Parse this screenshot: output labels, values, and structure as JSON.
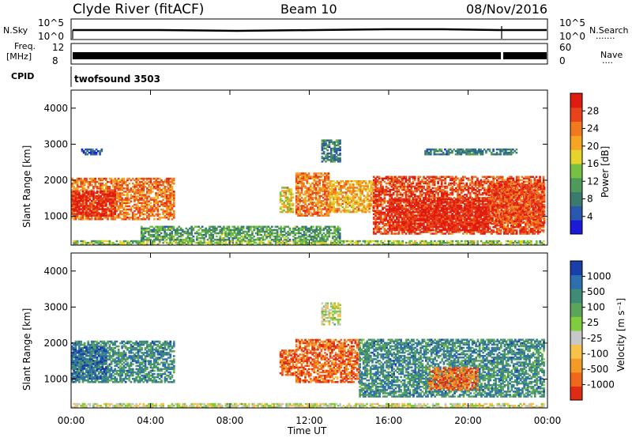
{
  "header": {
    "title": "Clyde River (fitACF)",
    "beam": "Beam 10",
    "date": "08/Nov/2016"
  },
  "top_panels": {
    "nsky_label": "N.Sky",
    "nsky_ticks": [
      "10^5",
      "10^0"
    ],
    "nsearch_label": "N.Search",
    "nsearch_ticks": [
      "10^5",
      "10^0"
    ],
    "nsearch_dots": ".......",
    "freq_label": "Freq.",
    "freq_unit": "[MHz]",
    "freq_ticks": [
      "12",
      "8"
    ],
    "nave_label": "Nave",
    "nave_ticks": [
      "60",
      "0"
    ],
    "nave_dots": "....",
    "cpid_label": "CPID",
    "cpid_value": "twofsound 3503"
  },
  "chart_data": [
    {
      "type": "heatmap",
      "name": "power",
      "ylabel": "Slant Range [km]",
      "yticks": [
        "1000",
        "2000",
        "3000",
        "4000"
      ],
      "ylim": [
        200,
        4500
      ],
      "xlim": [
        0,
        24
      ],
      "xticks": [
        "00:00",
        "04:00",
        "08:00",
        "12:00",
        "16:00",
        "20:00",
        "00:00"
      ],
      "colorbar": {
        "label": "Power [dB]",
        "tick_labels": [
          "4",
          "8",
          "12",
          "16",
          "20",
          "24",
          "28"
        ],
        "colors": [
          "#1a1adb",
          "#2a57b0",
          "#3d7a6e",
          "#4f9a5a",
          "#76c043",
          "#e6d42a",
          "#f4a524",
          "#f07a1d",
          "#e8431a",
          "#e01b12"
        ]
      },
      "regions": [
        {
          "t0": 0.0,
          "t1": 5.2,
          "r0": 900,
          "r1": 2050,
          "level": 7
        },
        {
          "t0": 0.0,
          "t1": 2.2,
          "r0": 1000,
          "r1": 1700,
          "level": 9
        },
        {
          "t0": 10.5,
          "t1": 11.2,
          "r0": 1100,
          "r1": 1800,
          "level": 5
        },
        {
          "t0": 11.3,
          "t1": 13.0,
          "r0": 1000,
          "r1": 2200,
          "level": 7
        },
        {
          "t0": 13.0,
          "t1": 15.2,
          "r0": 1100,
          "r1": 2000,
          "level": 6
        },
        {
          "t0": 15.2,
          "t1": 23.8,
          "r0": 500,
          "r1": 2100,
          "level": 8
        },
        {
          "t0": 16.0,
          "t1": 21.0,
          "r0": 600,
          "r1": 1500,
          "level": 9
        },
        {
          "t0": 21.0,
          "t1": 23.8,
          "r0": 800,
          "r1": 1900,
          "level": 8
        },
        {
          "t0": 0.5,
          "t1": 1.5,
          "r0": 2700,
          "r1": 2850,
          "level": 1
        },
        {
          "t0": 12.6,
          "t1": 13.5,
          "r0": 2500,
          "r1": 3100,
          "level": 2
        },
        {
          "t0": 17.8,
          "t1": 22.4,
          "r0": 2700,
          "r1": 2850,
          "level": 2
        },
        {
          "t0": 0.0,
          "t1": 23.8,
          "r0": 200,
          "r1": 330,
          "level": 4
        },
        {
          "t0": 3.5,
          "t1": 13.5,
          "r0": 330,
          "r1": 700,
          "level": 3
        }
      ]
    },
    {
      "type": "heatmap",
      "name": "velocity",
      "ylabel": "Slant Range [km]",
      "yticks": [
        "1000",
        "2000",
        "3000",
        "4000"
      ],
      "ylim": [
        200,
        4500
      ],
      "xlim": [
        0,
        24
      ],
      "xticks": [
        "00:00",
        "04:00",
        "08:00",
        "12:00",
        "16:00",
        "20:00",
        "00:00"
      ],
      "xlabel": "Time UT",
      "colorbar": {
        "label": "Velocity [m s⁻¹]",
        "tick_labels": [
          "1000",
          "500",
          "100",
          "25",
          "-25",
          "-100",
          "-500",
          "-1000"
        ],
        "colors": [
          "#1a3fa8",
          "#2e6fb0",
          "#3f8c76",
          "#5aa55a",
          "#7fcc3d",
          "#c8c8c8",
          "#f6c24a",
          "#f49a26",
          "#f0681e",
          "#e02b14"
        ]
      },
      "regions": [
        {
          "t0": 0.0,
          "t1": 5.2,
          "r0": 900,
          "r1": 2050,
          "level": 2
        },
        {
          "t0": 0.0,
          "t1": 1.8,
          "r0": 1000,
          "r1": 1900,
          "level": 1
        },
        {
          "t0": 10.5,
          "t1": 11.3,
          "r0": 1100,
          "r1": 1800,
          "level": 8
        },
        {
          "t0": 11.3,
          "t1": 14.5,
          "r0": 900,
          "r1": 2100,
          "level": 8
        },
        {
          "t0": 14.5,
          "t1": 23.8,
          "r0": 500,
          "r1": 2100,
          "level": 2
        },
        {
          "t0": 18.0,
          "t1": 20.5,
          "r0": 700,
          "r1": 1300,
          "level": 8
        },
        {
          "t0": 0.0,
          "t1": 23.8,
          "r0": 200,
          "r1": 330,
          "level": 5
        },
        {
          "t0": 12.6,
          "t1": 13.5,
          "r0": 2500,
          "r1": 3100,
          "level": 5
        }
      ]
    }
  ]
}
